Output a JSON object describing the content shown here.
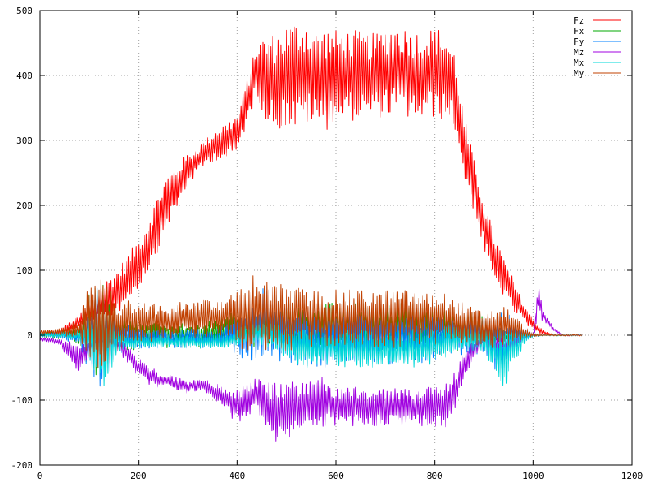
{
  "chart_data": {
    "type": "line",
    "title": "",
    "xlabel": "",
    "ylabel": "",
    "xlim": [
      0,
      1200
    ],
    "ylim": [
      -200,
      500
    ],
    "x_ticks": [
      0,
      200,
      400,
      600,
      800,
      1000,
      1200
    ],
    "y_ticks": [
      -200,
      -100,
      0,
      100,
      200,
      300,
      400,
      500
    ],
    "x_tick_labels": [
      "0",
      "200",
      "400",
      "600",
      "800",
      "1000",
      "1200"
    ],
    "y_tick_labels": [
      "-200",
      "-100",
      "0",
      "100",
      "200",
      "300",
      "400",
      "500"
    ],
    "grid": true,
    "legend_position": "top-right",
    "series": [
      {
        "name": "Fz",
        "color": "#ff0000",
        "x": [
          0,
          40,
          80,
          100,
          120,
          140,
          160,
          180,
          200,
          220,
          240,
          260,
          280,
          300,
          320,
          340,
          360,
          380,
          400,
          420,
          440,
          460,
          480,
          500,
          520,
          540,
          560,
          580,
          600,
          620,
          640,
          660,
          680,
          700,
          720,
          740,
          760,
          780,
          800,
          820,
          840,
          860,
          880,
          900,
          920,
          940,
          960,
          980,
          1000,
          1020,
          1040,
          1060,
          1080,
          1100
        ],
        "center": [
          0,
          5,
          20,
          35,
          45,
          55,
          70,
          90,
          110,
          140,
          175,
          210,
          230,
          255,
          270,
          285,
          295,
          300,
          310,
          360,
          410,
          395,
          390,
          400,
          400,
          405,
          395,
          395,
          400,
          400,
          400,
          400,
          400,
          405,
          410,
          405,
          400,
          400,
          405,
          400,
          380,
          290,
          230,
          170,
          120,
          90,
          60,
          35,
          15,
          5,
          0,
          0,
          0,
          0
        ],
        "amp": [
          3,
          5,
          10,
          20,
          30,
          35,
          35,
          35,
          40,
          40,
          45,
          40,
          35,
          25,
          20,
          20,
          25,
          30,
          30,
          35,
          40,
          70,
          75,
          80,
          85,
          80,
          75,
          80,
          70,
          70,
          70,
          65,
          65,
          70,
          70,
          70,
          70,
          70,
          70,
          70,
          60,
          50,
          40,
          40,
          40,
          30,
          25,
          15,
          10,
          3,
          1,
          1,
          1,
          1
        ]
      },
      {
        "name": "Fx",
        "color": "#00aa00",
        "x": [
          0,
          40,
          80,
          100,
          120,
          140,
          160,
          180,
          200,
          220,
          240,
          260,
          280,
          300,
          320,
          340,
          360,
          380,
          400,
          420,
          440,
          460,
          480,
          500,
          520,
          540,
          560,
          580,
          600,
          620,
          640,
          660,
          680,
          700,
          720,
          740,
          760,
          780,
          800,
          820,
          840,
          860,
          880,
          900,
          920,
          940,
          960,
          980,
          1000,
          1020,
          1040,
          1060,
          1080,
          1100
        ],
        "center": [
          0,
          0,
          0,
          5,
          10,
          10,
          5,
          0,
          0,
          0,
          5,
          0,
          0,
          0,
          0,
          0,
          5,
          5,
          10,
          10,
          15,
          10,
          10,
          10,
          5,
          5,
          10,
          10,
          10,
          10,
          10,
          10,
          10,
          10,
          10,
          10,
          10,
          10,
          5,
          5,
          5,
          5,
          10,
          5,
          0,
          0,
          0,
          0,
          0,
          0,
          0,
          0,
          0,
          0
        ],
        "amp": [
          4,
          6,
          15,
          60,
          80,
          50,
          30,
          25,
          20,
          20,
          20,
          20,
          20,
          20,
          20,
          20,
          25,
          25,
          30,
          30,
          35,
          40,
          40,
          40,
          40,
          40,
          40,
          40,
          40,
          40,
          40,
          40,
          40,
          40,
          40,
          40,
          40,
          35,
          35,
          35,
          30,
          30,
          30,
          25,
          15,
          10,
          5,
          3,
          2,
          1,
          1,
          1,
          1,
          1
        ]
      },
      {
        "name": "Fy",
        "color": "#0080ff",
        "x": [
          0,
          40,
          80,
          100,
          120,
          140,
          160,
          180,
          200,
          220,
          240,
          260,
          280,
          300,
          320,
          340,
          360,
          380,
          400,
          420,
          440,
          460,
          480,
          500,
          520,
          540,
          560,
          580,
          600,
          620,
          640,
          660,
          680,
          700,
          720,
          740,
          760,
          780,
          800,
          820,
          840,
          860,
          880,
          900,
          920,
          940,
          960,
          980,
          1000,
          1020,
          1040,
          1060,
          1080,
          1100
        ],
        "center": [
          0,
          0,
          -5,
          -10,
          0,
          0,
          -5,
          -5,
          -5,
          -5,
          -5,
          -5,
          -5,
          -5,
          -5,
          -5,
          -5,
          0,
          0,
          0,
          10,
          20,
          10,
          0,
          -5,
          -5,
          -5,
          -10,
          -5,
          -5,
          -5,
          -5,
          -5,
          -5,
          -5,
          -5,
          -5,
          -5,
          -5,
          0,
          0,
          0,
          0,
          0,
          -10,
          -20,
          -5,
          0,
          0,
          0,
          0,
          0,
          0,
          0
        ],
        "amp": [
          3,
          5,
          10,
          50,
          90,
          60,
          30,
          20,
          15,
          15,
          15,
          15,
          15,
          15,
          15,
          15,
          15,
          20,
          30,
          40,
          50,
          60,
          60,
          55,
          50,
          45,
          45,
          45,
          40,
          40,
          40,
          40,
          40,
          40,
          40,
          40,
          40,
          40,
          35,
          35,
          30,
          30,
          30,
          30,
          40,
          60,
          30,
          10,
          3,
          1,
          1,
          1,
          1,
          1
        ]
      },
      {
        "name": "Mz",
        "color": "#a000e0",
        "x": [
          0,
          40,
          80,
          100,
          120,
          140,
          160,
          180,
          200,
          220,
          240,
          260,
          280,
          300,
          320,
          340,
          360,
          380,
          400,
          420,
          440,
          460,
          480,
          500,
          520,
          540,
          560,
          580,
          600,
          620,
          640,
          660,
          680,
          700,
          720,
          740,
          760,
          780,
          800,
          820,
          840,
          860,
          880,
          900,
          920,
          940,
          960,
          980,
          1000,
          1010,
          1020,
          1040,
          1060,
          1080,
          1100
        ],
        "center": [
          -5,
          -10,
          -40,
          -20,
          -10,
          -10,
          -15,
          -30,
          -50,
          -60,
          -70,
          -70,
          -75,
          -80,
          -75,
          -80,
          -90,
          -100,
          -110,
          -100,
          -90,
          -110,
          -120,
          -120,
          -115,
          -110,
          -105,
          -105,
          -110,
          -110,
          -110,
          -110,
          -110,
          -110,
          -110,
          -110,
          -110,
          -110,
          -110,
          -110,
          -90,
          -50,
          -20,
          -10,
          -10,
          -15,
          -10,
          -5,
          0,
          60,
          30,
          10,
          0,
          0,
          0
        ],
        "amp": [
          3,
          5,
          25,
          10,
          5,
          5,
          10,
          15,
          15,
          15,
          15,
          10,
          10,
          10,
          10,
          10,
          15,
          20,
          30,
          25,
          25,
          40,
          45,
          45,
          45,
          45,
          40,
          40,
          30,
          30,
          30,
          30,
          30,
          30,
          30,
          30,
          30,
          30,
          30,
          35,
          35,
          25,
          15,
          10,
          10,
          10,
          10,
          5,
          3,
          30,
          10,
          3,
          1,
          1,
          1
        ]
      },
      {
        "name": "Mx",
        "color": "#00d8d8",
        "x": [
          0,
          40,
          80,
          100,
          120,
          140,
          160,
          180,
          200,
          220,
          240,
          260,
          280,
          300,
          320,
          340,
          360,
          380,
          400,
          420,
          440,
          460,
          480,
          500,
          520,
          540,
          560,
          580,
          600,
          620,
          640,
          660,
          680,
          700,
          720,
          740,
          760,
          780,
          800,
          820,
          840,
          860,
          880,
          900,
          920,
          940,
          960,
          980,
          1000,
          1020,
          1040,
          1060,
          1080,
          1100
        ],
        "center": [
          0,
          0,
          0,
          -10,
          -20,
          -20,
          -10,
          -10,
          -10,
          -10,
          -10,
          -10,
          -10,
          -10,
          -10,
          -10,
          -10,
          -10,
          -5,
          0,
          5,
          0,
          -5,
          -10,
          -15,
          -20,
          -20,
          -20,
          -20,
          -20,
          -20,
          -20,
          -20,
          -20,
          -20,
          -20,
          -20,
          -20,
          -15,
          -10,
          -5,
          -5,
          -10,
          -10,
          -20,
          -40,
          -20,
          -5,
          0,
          0,
          0,
          0,
          0,
          0
        ],
        "amp": [
          3,
          4,
          8,
          40,
          70,
          50,
          20,
          10,
          10,
          10,
          10,
          10,
          10,
          10,
          10,
          10,
          10,
          10,
          15,
          15,
          15,
          20,
          20,
          25,
          30,
          30,
          30,
          30,
          30,
          30,
          30,
          30,
          30,
          30,
          30,
          30,
          30,
          30,
          25,
          25,
          20,
          20,
          20,
          20,
          30,
          50,
          30,
          10,
          3,
          1,
          1,
          1,
          1,
          1
        ]
      },
      {
        "name": "My",
        "color": "#c04000",
        "x": [
          0,
          40,
          80,
          100,
          120,
          140,
          160,
          180,
          200,
          220,
          240,
          260,
          280,
          300,
          320,
          340,
          360,
          380,
          400,
          420,
          440,
          460,
          480,
          500,
          520,
          540,
          560,
          580,
          600,
          620,
          640,
          660,
          680,
          700,
          720,
          740,
          760,
          780,
          800,
          820,
          840,
          860,
          880,
          900,
          920,
          940,
          960,
          980,
          1000,
          1020,
          1040,
          1060,
          1080,
          1100
        ],
        "center": [
          5,
          5,
          10,
          20,
          20,
          10,
          15,
          20,
          20,
          20,
          20,
          20,
          25,
          25,
          25,
          25,
          25,
          25,
          25,
          30,
          40,
          30,
          30,
          25,
          25,
          25,
          25,
          25,
          25,
          25,
          25,
          25,
          25,
          25,
          25,
          25,
          25,
          25,
          25,
          25,
          20,
          15,
          10,
          10,
          10,
          15,
          10,
          5,
          0,
          0,
          0,
          0,
          0,
          0
        ],
        "amp": [
          3,
          5,
          15,
          60,
          80,
          70,
          40,
          35,
          30,
          30,
          30,
          30,
          30,
          30,
          30,
          30,
          30,
          35,
          45,
          55,
          60,
          55,
          55,
          50,
          50,
          45,
          45,
          45,
          45,
          45,
          45,
          45,
          45,
          45,
          45,
          45,
          45,
          40,
          40,
          40,
          35,
          35,
          30,
          30,
          30,
          30,
          25,
          10,
          3,
          1,
          1,
          1,
          1,
          1
        ]
      }
    ]
  }
}
